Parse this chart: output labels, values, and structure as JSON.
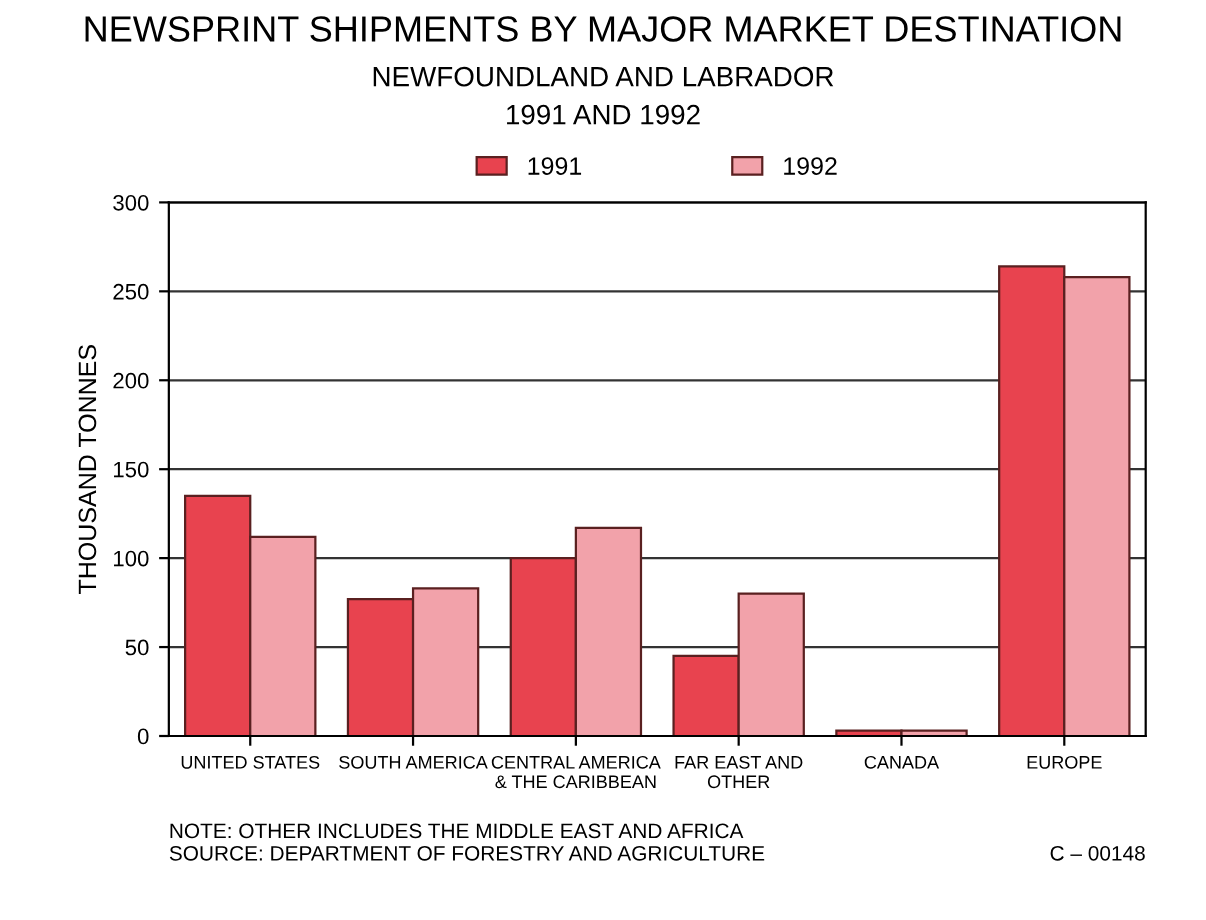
{
  "chart_data": {
    "type": "bar",
    "title": "NEWSPRINT SHIPMENTS BY MAJOR MARKET DESTINATION",
    "subtitle": "NEWFOUNDLAND AND LABRADOR\n1991 AND 1992",
    "ylabel": "THOUSAND TONNES",
    "categories": [
      "UNITED STATES",
      "SOUTH AMERICA",
      "CENTRAL AMERICA\n& THE CARIBBEAN",
      "FAR EAST AND\nOTHER",
      "CANADA",
      "EUROPE"
    ],
    "series": [
      {
        "name": "1991",
        "color": "#e8434f",
        "values": [
          135,
          77,
          100,
          45,
          3,
          264
        ]
      },
      {
        "name": "1992",
        "color": "#f2a2aa",
        "values": [
          112,
          83,
          117,
          80,
          3,
          258
        ]
      }
    ],
    "ylim": [
      0,
      300
    ],
    "yticks": [
      0,
      50,
      100,
      150,
      200,
      250,
      300
    ],
    "grid": "y",
    "legend": "top",
    "annotations": [
      "NOTE: OTHER INCLUDES THE MIDDLE EAST AND AFRICA\nSOURCE: DEPARTMENT OF FORESTRY AND AGRICULTURE",
      "C – 00148"
    ]
  }
}
